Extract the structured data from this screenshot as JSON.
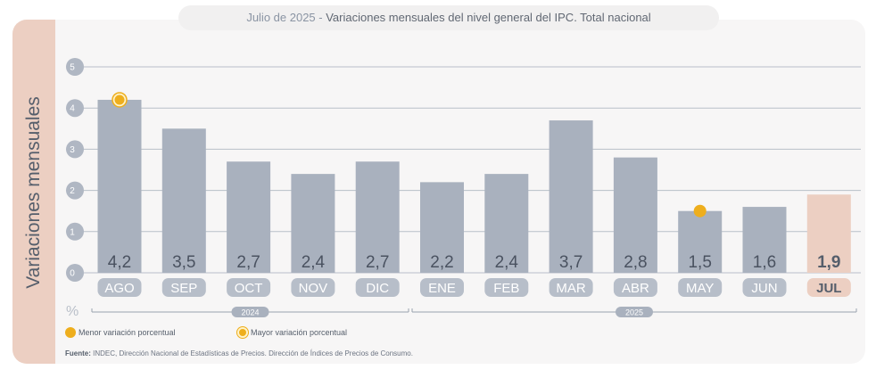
{
  "title": {
    "date": "Julio de 2025 -",
    "text": "Variaciones mensuales del nivel general del IPC. Total nacional"
  },
  "y_axis_label": "Variaciones mensuales",
  "unit_label": "%",
  "legend": {
    "min_label": "Menor variación porcentual",
    "max_label": "Mayor variación porcentual"
  },
  "source": {
    "prefix": "Fuente:",
    "text": "INDEC, Dirección Nacional de Estadísticas de Precios. Dirección de Índices de Precios de Consumo."
  },
  "colors": {
    "bar": "#a9b1be",
    "bar_highlight": "#eccfc2",
    "month_pill": "#b7bec9",
    "highlight_text": "#555e6b",
    "marker": "#eeae1d"
  },
  "chart_data": {
    "type": "bar",
    "categories": [
      "AGO",
      "SEP",
      "OCT",
      "NOV",
      "DIC",
      "ENE",
      "FEB",
      "MAR",
      "ABR",
      "MAY",
      "JUN",
      "JUL"
    ],
    "values": [
      4.2,
      3.5,
      2.7,
      2.4,
      2.7,
      2.2,
      2.4,
      3.7,
      2.8,
      1.5,
      1.6,
      1.9
    ],
    "value_labels": [
      "4,2",
      "3,5",
      "2,7",
      "2,4",
      "2,7",
      "2,2",
      "2,4",
      "3,7",
      "2,8",
      "1,5",
      "1,6",
      "1,9"
    ],
    "ylim": [
      0,
      5
    ],
    "yticks": [
      "0",
      "1",
      "2",
      "3",
      "4",
      "5"
    ],
    "grid": true,
    "highlight_index": 11,
    "max_index": 0,
    "min_index": 9,
    "year_groups": [
      {
        "label": "2024",
        "start": 0,
        "end": 4
      },
      {
        "label": "2025",
        "start": 5,
        "end": 11
      }
    ]
  }
}
